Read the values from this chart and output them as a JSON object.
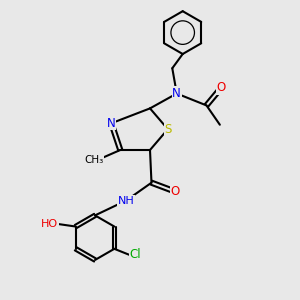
{
  "background_color": "#e8e8e8",
  "bond_color": "black",
  "bond_width": 1.5,
  "atom_colors": {
    "N": "#0000ee",
    "O": "#ee0000",
    "S": "#bbbb00",
    "Cl": "#00aa00",
    "C": "black",
    "H": "black"
  },
  "font_size": 8.5,
  "fig_width": 3.0,
  "fig_height": 3.0,
  "dpi": 100,
  "xlim": [
    0,
    10
  ],
  "ylim": [
    0,
    10
  ]
}
